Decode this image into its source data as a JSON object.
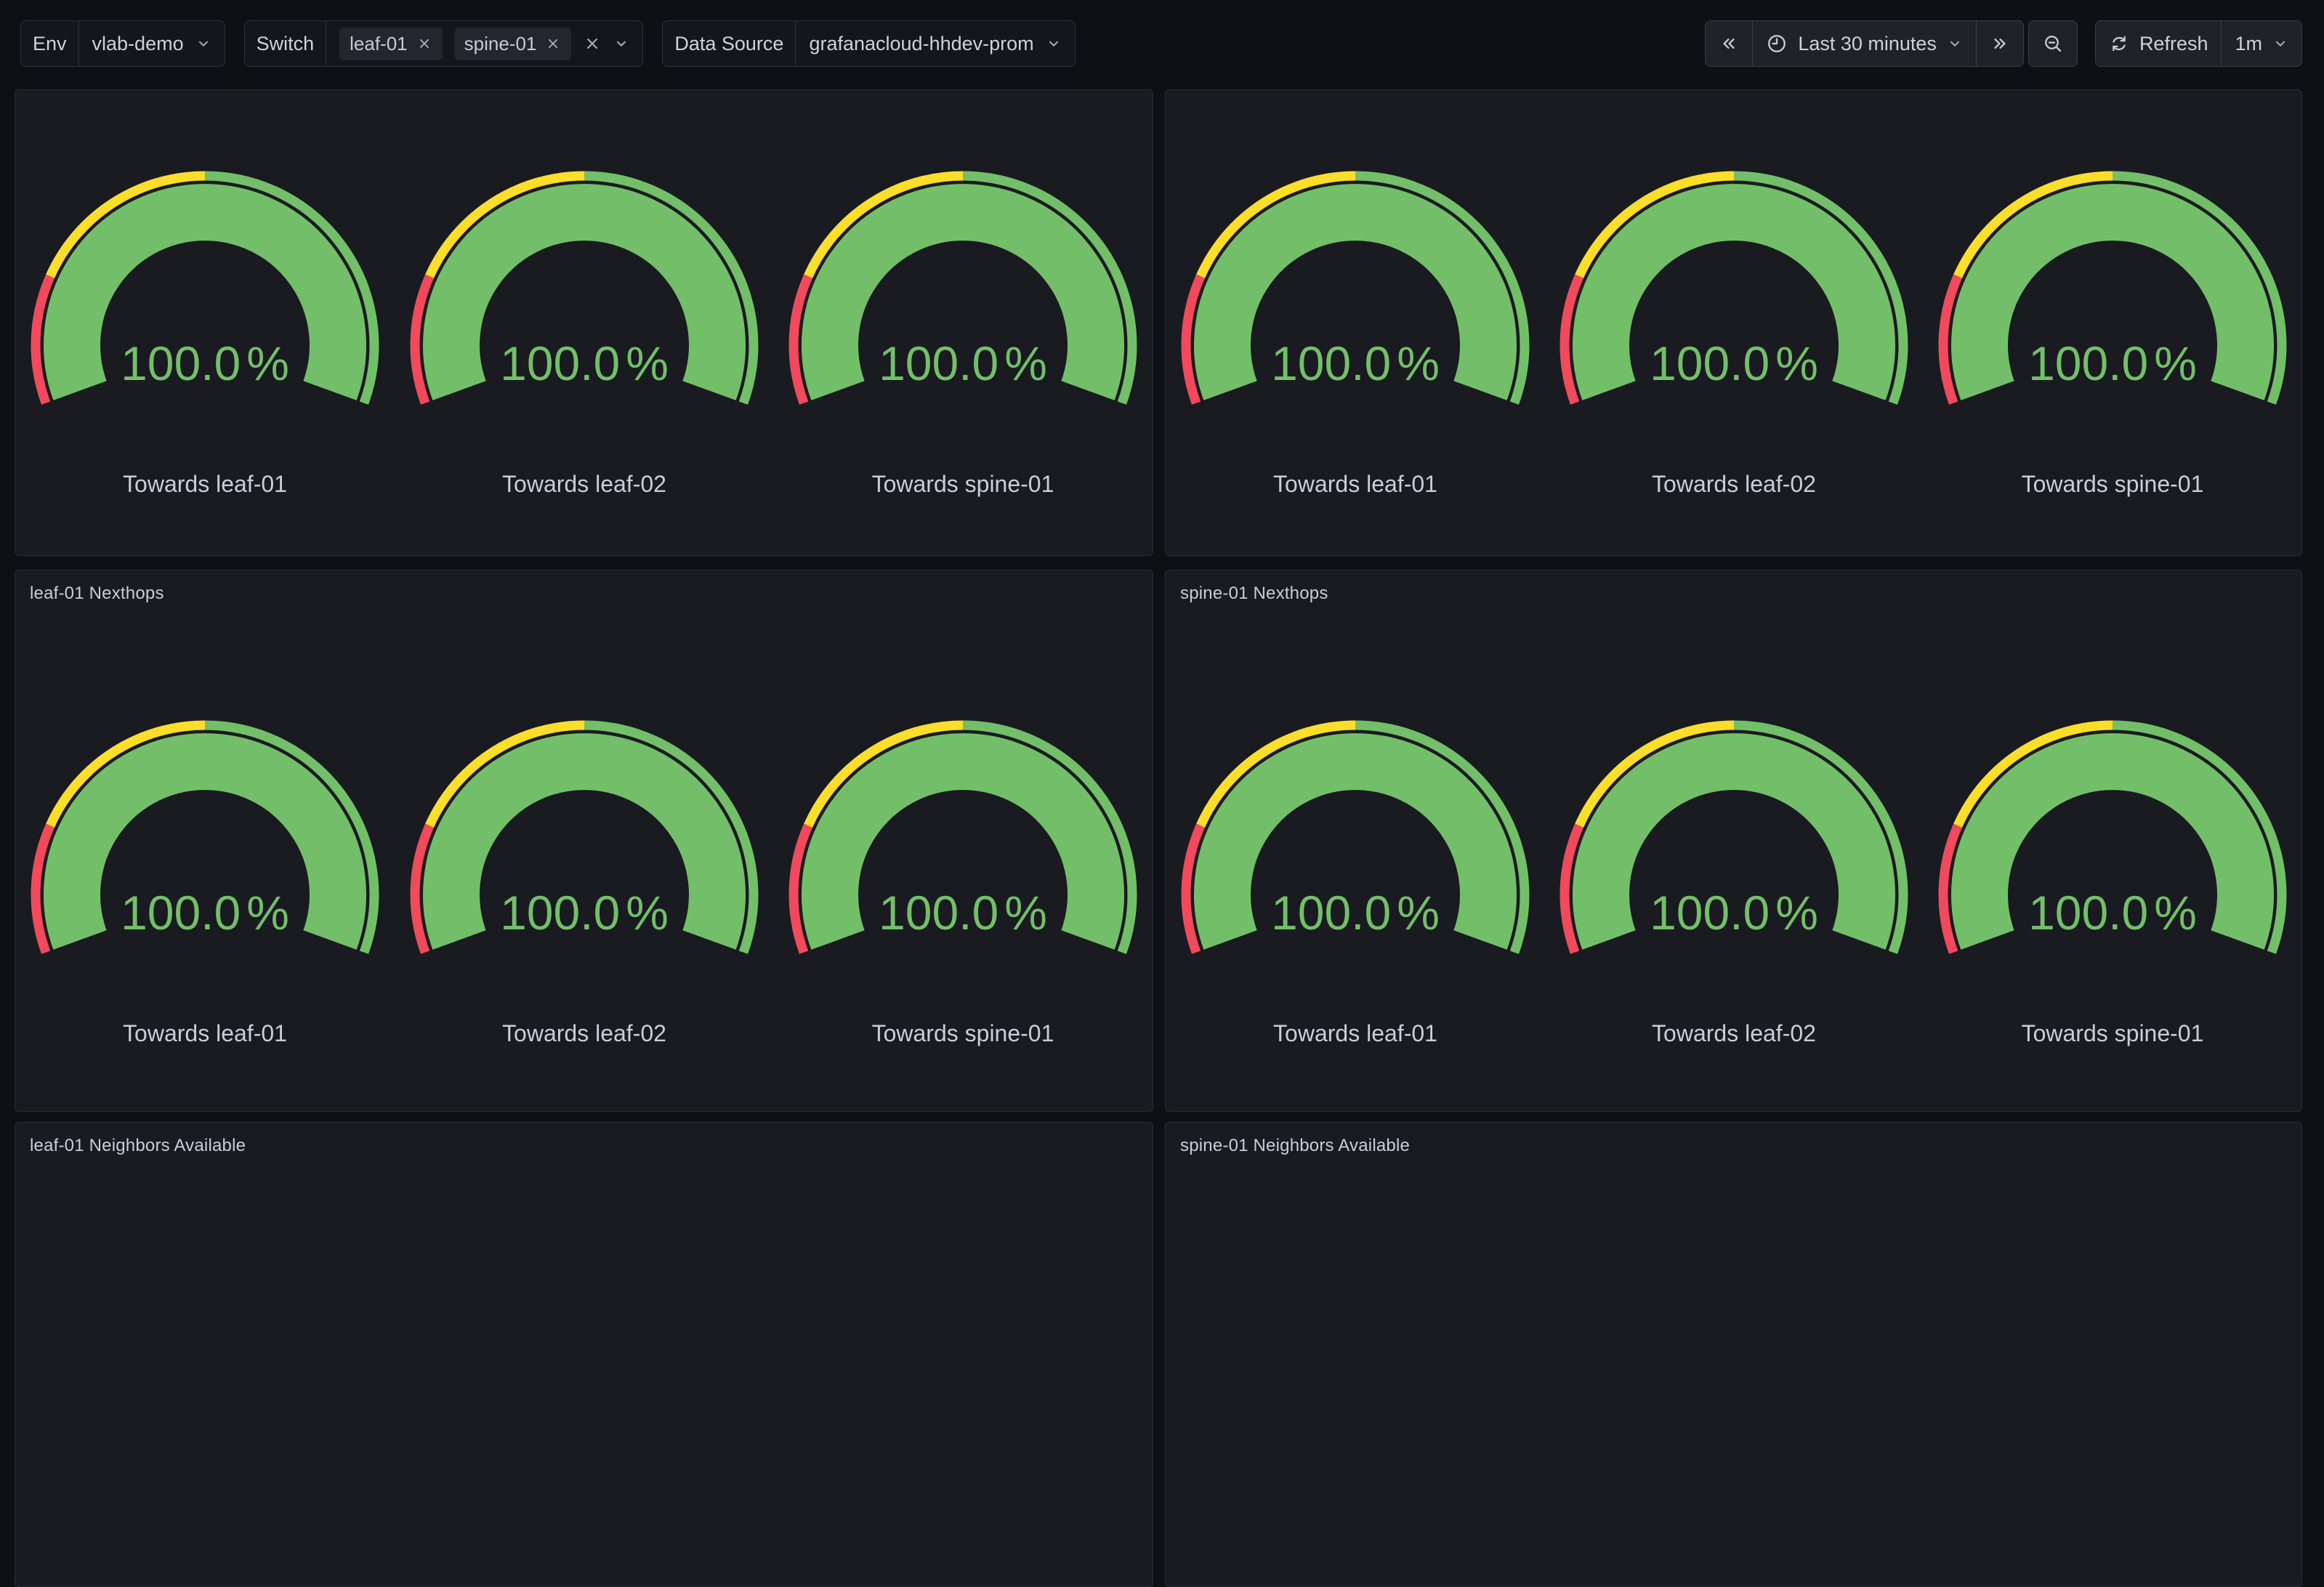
{
  "toolbar": {
    "env": {
      "label": "Env",
      "value": "vlab-demo"
    },
    "switch": {
      "label": "Switch",
      "tags": [
        "leaf-01",
        "spine-01"
      ]
    },
    "datasource": {
      "label": "Data Source",
      "value": "grafanacloud-hhdev-prom"
    },
    "time_picker": {
      "range": "Last 30 minutes"
    },
    "refresh": {
      "label": "Refresh",
      "interval": "1m"
    }
  },
  "icons": {
    "chevron-down": "⌄",
    "angle-double-left": "«",
    "angle-double-right": "»",
    "clock-nine": "🕘",
    "zoom-out": "🔍−",
    "refresh-sync": "⟳",
    "remove-x": "×"
  },
  "colors": {
    "canvas": "#0F1014",
    "panel": "#191B20",
    "border": "#2B2D33",
    "text": "#CCCCDC",
    "green": "#73BF69",
    "yellow": "#FADE2A",
    "red": "#F2495C"
  },
  "gauge": {
    "min": 0,
    "max": 100,
    "unit": "%",
    "start_angle": 200,
    "end_angle": -20,
    "thresholds": [
      {
        "from": 0,
        "color": "#F2495C"
      },
      {
        "from": 20,
        "color": "#FADE2A"
      },
      {
        "from": 50,
        "color": "#73BF69"
      }
    ]
  },
  "panels": [
    {
      "title": "",
      "gauges": [
        {
          "label": "Towards leaf-01",
          "value": 100,
          "value_text": "100.0",
          "unit": "%"
        },
        {
          "label": "Towards leaf-02",
          "value": 100,
          "value_text": "100.0",
          "unit": "%"
        },
        {
          "label": "Towards spine-01",
          "value": 100,
          "value_text": "100.0",
          "unit": "%"
        }
      ]
    },
    {
      "title": "",
      "gauges": [
        {
          "label": "Towards leaf-01",
          "value": 100,
          "value_text": "100.0",
          "unit": "%"
        },
        {
          "label": "Towards leaf-02",
          "value": 100,
          "value_text": "100.0",
          "unit": "%"
        },
        {
          "label": "Towards spine-01",
          "value": 100,
          "value_text": "100.0",
          "unit": "%"
        }
      ]
    },
    {
      "title": "leaf-01 Nexthops",
      "gauges": [
        {
          "label": "Towards leaf-01",
          "value": 100,
          "value_text": "100.0",
          "unit": "%"
        },
        {
          "label": "Towards leaf-02",
          "value": 100,
          "value_text": "100.0",
          "unit": "%"
        },
        {
          "label": "Towards spine-01",
          "value": 100,
          "value_text": "100.0",
          "unit": "%"
        }
      ]
    },
    {
      "title": "spine-01 Nexthops",
      "gauges": [
        {
          "label": "Towards leaf-01",
          "value": 100,
          "value_text": "100.0",
          "unit": "%"
        },
        {
          "label": "Towards leaf-02",
          "value": 100,
          "value_text": "100.0",
          "unit": "%"
        },
        {
          "label": "Towards spine-01",
          "value": 100,
          "value_text": "100.0",
          "unit": "%"
        }
      ]
    },
    {
      "title": "leaf-01 Neighbors Available",
      "gauges": []
    },
    {
      "title": "spine-01 Neighbors Available",
      "gauges": []
    }
  ],
  "chart_data": [
    {
      "type": "gauge",
      "panel_title": "",
      "categories": [
        "Towards leaf-01",
        "Towards leaf-02",
        "Towards spine-01"
      ],
      "values": [
        100.0,
        100.0,
        100.0
      ],
      "unit": "%",
      "min": 0,
      "max": 100,
      "thresholds": {
        "red": [
          0,
          20
        ],
        "yellow": [
          20,
          50
        ],
        "green": [
          50,
          100
        ]
      }
    },
    {
      "type": "gauge",
      "panel_title": "",
      "categories": [
        "Towards leaf-01",
        "Towards leaf-02",
        "Towards spine-01"
      ],
      "values": [
        100.0,
        100.0,
        100.0
      ],
      "unit": "%",
      "min": 0,
      "max": 100,
      "thresholds": {
        "red": [
          0,
          20
        ],
        "yellow": [
          20,
          50
        ],
        "green": [
          50,
          100
        ]
      }
    },
    {
      "type": "gauge",
      "panel_title": "leaf-01 Nexthops",
      "categories": [
        "Towards leaf-01",
        "Towards leaf-02",
        "Towards spine-01"
      ],
      "values": [
        100.0,
        100.0,
        100.0
      ],
      "unit": "%",
      "min": 0,
      "max": 100,
      "thresholds": {
        "red": [
          0,
          20
        ],
        "yellow": [
          20,
          50
        ],
        "green": [
          50,
          100
        ]
      }
    },
    {
      "type": "gauge",
      "panel_title": "spine-01 Nexthops",
      "categories": [
        "Towards leaf-01",
        "Towards leaf-02",
        "Towards spine-01"
      ],
      "values": [
        100.0,
        100.0,
        100.0
      ],
      "unit": "%",
      "min": 0,
      "max": 100,
      "thresholds": {
        "red": [
          0,
          20
        ],
        "yellow": [
          20,
          50
        ],
        "green": [
          50,
          100
        ]
      }
    },
    {
      "type": "gauge",
      "panel_title": "leaf-01 Neighbors Available",
      "categories": [],
      "values": []
    },
    {
      "type": "gauge",
      "panel_title": "spine-01 Neighbors Available",
      "categories": [],
      "values": []
    }
  ]
}
